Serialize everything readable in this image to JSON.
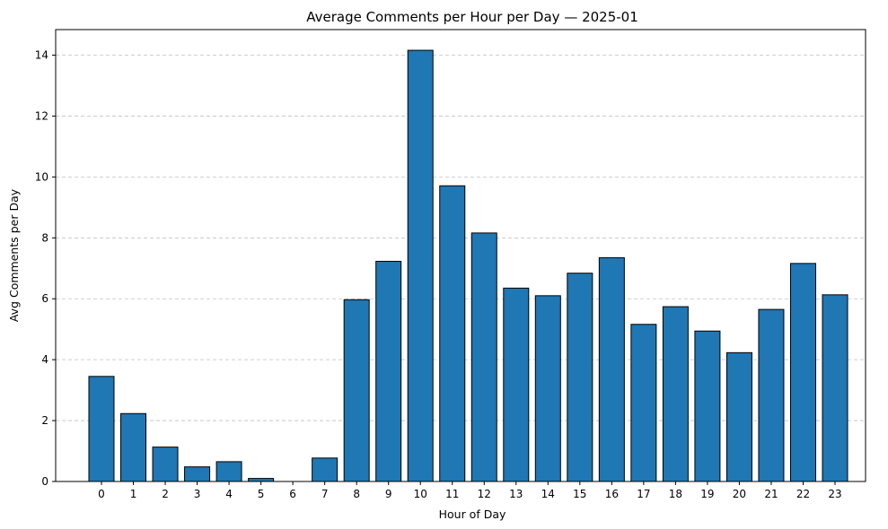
{
  "chart_data": {
    "type": "bar",
    "title": "Average Comments per Hour per Day — 2025-01",
    "xlabel": "Hour of Day",
    "ylabel": "Avg Comments per Day",
    "categories": [
      "0",
      "1",
      "2",
      "3",
      "4",
      "5",
      "6",
      "7",
      "8",
      "9",
      "10",
      "11",
      "12",
      "13",
      "14",
      "15",
      "16",
      "17",
      "18",
      "19",
      "20",
      "21",
      "22",
      "23"
    ],
    "values": [
      3.45,
      2.23,
      1.13,
      0.48,
      0.65,
      0.1,
      0.0,
      0.77,
      5.97,
      7.23,
      14.16,
      9.71,
      8.16,
      6.35,
      6.1,
      6.84,
      7.35,
      5.16,
      5.74,
      4.94,
      4.23,
      5.65,
      7.16,
      6.13
    ],
    "ylim": [
      0,
      14.84
    ],
    "yticks": [
      0,
      2,
      4,
      6,
      8,
      10,
      12,
      14
    ],
    "grid": "y-dashed",
    "colors": {
      "bar": "#1f77b4",
      "edge": "#000000",
      "grid": "#c0c0c0"
    }
  }
}
